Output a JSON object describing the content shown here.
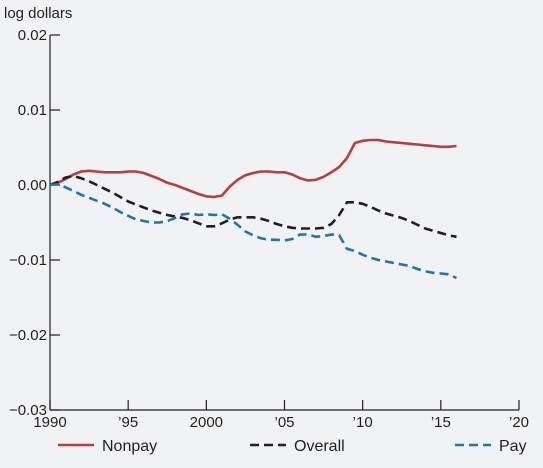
{
  "chart_data": {
    "type": "line",
    "title": "",
    "unit_label": "log dollars",
    "xlabel": "",
    "ylabel": "",
    "xlim": [
      1990,
      2020
    ],
    "ylim": [
      -0.03,
      0.02
    ],
    "x_ticks": [
      1990,
      1995,
      2000,
      2005,
      2010,
      2015,
      2020
    ],
    "x_tick_labels": [
      "1990",
      "’95",
      "2000",
      "’05",
      "’10",
      "’15",
      "’20"
    ],
    "y_ticks": [
      0.02,
      0.01,
      0.0,
      -0.01,
      -0.02,
      -0.03
    ],
    "y_tick_labels": [
      "0.02",
      "0.01",
      "0.00",
      "−0.01",
      "−0.02",
      "−0.03"
    ],
    "grid": false,
    "legend_position": "bottom",
    "series": [
      {
        "name": "Nonpay",
        "color": "#b5403f",
        "style": "solid",
        "x": [
          1990,
          1990.5,
          1991,
          1991.5,
          1992,
          1992.5,
          1993,
          1993.5,
          1994,
          1994.5,
          1995,
          1995.5,
          1996,
          1996.5,
          1997,
          1997.5,
          1998,
          1998.5,
          1999,
          1999.5,
          2000,
          2000.5,
          2001,
          2001.5,
          2002,
          2002.5,
          2003,
          2003.5,
          2004,
          2004.5,
          2005,
          2005.5,
          2006,
          2006.5,
          2007,
          2007.5,
          2008,
          2008.5,
          2009,
          2009.5,
          2010,
          2010.5,
          2011,
          2011.5,
          2012,
          2012.5,
          2013,
          2013.5,
          2014,
          2014.5,
          2015,
          2015.5,
          2016
        ],
        "y": [
          0.0,
          0.0003,
          0.0008,
          0.0014,
          0.0018,
          0.0019,
          0.0018,
          0.0017,
          0.0017,
          0.0017,
          0.0018,
          0.0018,
          0.0016,
          0.0012,
          0.0008,
          0.0003,
          0.0,
          -0.0004,
          -0.0008,
          -0.0012,
          -0.0015,
          -0.0016,
          -0.0014,
          -0.0002,
          0.0007,
          0.0013,
          0.0016,
          0.0018,
          0.0018,
          0.0017,
          0.0017,
          0.0014,
          0.0009,
          0.0006,
          0.0007,
          0.0011,
          0.0017,
          0.0024,
          0.0036,
          0.0056,
          0.0059,
          0.006,
          0.006,
          0.0058,
          0.0057,
          0.0056,
          0.0055,
          0.0054,
          0.0053,
          0.0052,
          0.0051,
          0.0051,
          0.0052
        ]
      },
      {
        "name": "Overall",
        "color": "#231f20",
        "style": "dashed",
        "x": [
          1990,
          1990.5,
          1991,
          1991.5,
          1992,
          1992.5,
          1993,
          1993.5,
          1994,
          1994.5,
          1995,
          1995.5,
          1996,
          1996.5,
          1997,
          1997.5,
          1998,
          1998.5,
          1999,
          1999.5,
          2000,
          2000.5,
          2001,
          2001.5,
          2002,
          2002.5,
          2003,
          2003.5,
          2004,
          2004.5,
          2005,
          2005.5,
          2006,
          2006.5,
          2007,
          2007.5,
          2008,
          2008.5,
          2009,
          2009.5,
          2010,
          2010.5,
          2011,
          2011.5,
          2012,
          2012.5,
          2013,
          2013.5,
          2014,
          2014.5,
          2015,
          2015.5,
          2016
        ],
        "y": [
          0.0,
          0.0004,
          0.001,
          0.0012,
          0.0009,
          0.0005,
          0.0,
          -0.0005,
          -0.001,
          -0.0016,
          -0.0022,
          -0.0026,
          -0.003,
          -0.0034,
          -0.0037,
          -0.004,
          -0.0042,
          -0.0044,
          -0.0047,
          -0.0051,
          -0.0055,
          -0.0055,
          -0.0051,
          -0.0046,
          -0.0043,
          -0.0043,
          -0.0043,
          -0.0045,
          -0.0048,
          -0.0052,
          -0.0055,
          -0.0057,
          -0.0058,
          -0.0058,
          -0.0058,
          -0.0057,
          -0.0052,
          -0.004,
          -0.0023,
          -0.0023,
          -0.0025,
          -0.0029,
          -0.0034,
          -0.0038,
          -0.0041,
          -0.0044,
          -0.0048,
          -0.0053,
          -0.0058,
          -0.0061,
          -0.0064,
          -0.0067,
          -0.0069
        ]
      },
      {
        "name": "Pay",
        "color": "#1f73b6",
        "style": "dashed",
        "x": [
          1990,
          1990.5,
          1991,
          1991.5,
          1992,
          1992.5,
          1993,
          1993.5,
          1994,
          1994.5,
          1995,
          1995.5,
          1996,
          1996.5,
          1997,
          1997.5,
          1998,
          1998.5,
          1999,
          1999.5,
          2000,
          2000.5,
          2001,
          2001.5,
          2002,
          2002.5,
          2003,
          2003.5,
          2004,
          2004.5,
          2005,
          2005.5,
          2006,
          2006.5,
          2007,
          2007.5,
          2008,
          2008.5,
          2009,
          2009.5,
          2010,
          2010.5,
          2011,
          2011.5,
          2012,
          2012.5,
          2013,
          2013.5,
          2014,
          2014.5,
          2015,
          2015.5,
          2016
        ],
        "y": [
          0.0,
          0.0001,
          -0.0003,
          -0.0008,
          -0.0013,
          -0.0017,
          -0.0021,
          -0.0025,
          -0.003,
          -0.0036,
          -0.0041,
          -0.0046,
          -0.0048,
          -0.005,
          -0.005,
          -0.0048,
          -0.0044,
          -0.0039,
          -0.0038,
          -0.004,
          -0.0039,
          -0.004,
          -0.0039,
          -0.0045,
          -0.0053,
          -0.0062,
          -0.0067,
          -0.0071,
          -0.0073,
          -0.0073,
          -0.0074,
          -0.0072,
          -0.0066,
          -0.0066,
          -0.0069,
          -0.0068,
          -0.0066,
          -0.0067,
          -0.0085,
          -0.0088,
          -0.0093,
          -0.0097,
          -0.01,
          -0.0102,
          -0.0104,
          -0.0106,
          -0.0108,
          -0.0112,
          -0.0115,
          -0.0117,
          -0.0118,
          -0.0119,
          -0.0124
        ]
      }
    ]
  }
}
